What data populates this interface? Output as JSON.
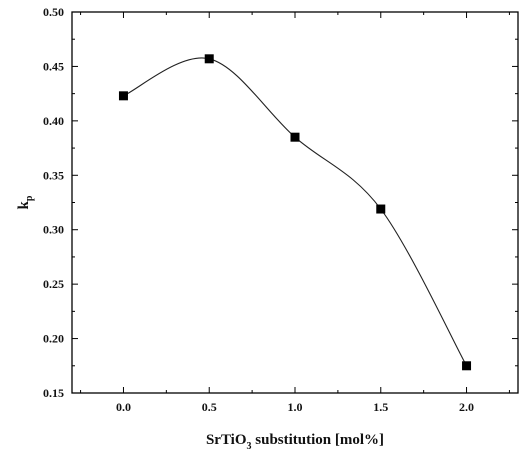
{
  "chart_data": {
    "type": "line",
    "x": [
      0.0,
      0.5,
      1.0,
      1.5,
      2.0
    ],
    "series": [
      {
        "values": [
          0.423,
          0.457,
          0.385,
          0.319,
          0.175
        ]
      }
    ],
    "x_ticks": [
      "0.0",
      "0.5",
      "1.0",
      "1.5",
      "2.0"
    ],
    "y_ticks": [
      "0.15",
      "0.20",
      "0.25",
      "0.30",
      "0.35",
      "0.40",
      "0.45",
      "0.50"
    ],
    "xlim": [
      -0.3,
      2.3
    ],
    "ylim": [
      0.15,
      0.5
    ],
    "xlabel": {
      "main": "SrTiO",
      "sub": "3",
      "rest": " substitution [mol%]"
    },
    "ylabel": {
      "main": "k",
      "sub": "p"
    },
    "marker": "square",
    "line_style": "smooth",
    "grid": false,
    "colors": {
      "line": "#222222",
      "marker": "#000000",
      "axis": "#000000"
    }
  }
}
